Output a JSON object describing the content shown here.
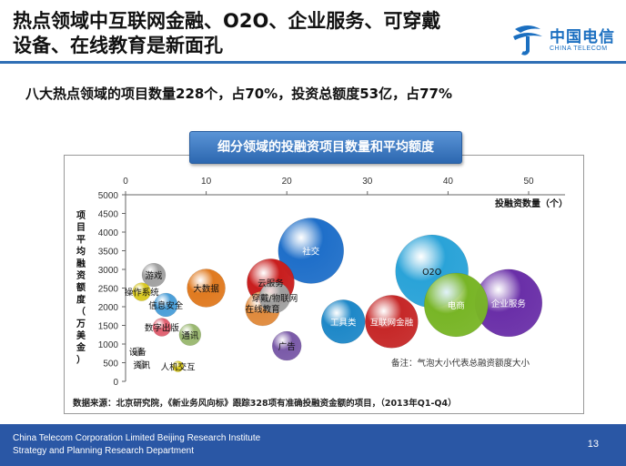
{
  "slide": {
    "title_line1": "热点领域中互联网金融、O2O、企业服务、可穿戴",
    "title_line2": "设备、在线教育是新面孔",
    "subtitle": "八大热点领域的项目数量228个，占70%，投资总额度53亿，占77%",
    "logo_cn": "中国电信",
    "logo_en": "CHINA TELECOM",
    "footer_line1": "China Telecom Corporation Limited Beijing Research Institute",
    "footer_line2": "Strategy and Planning Research Department",
    "page_number": "13",
    "accent_color": "#2a57a5"
  },
  "chart_data": {
    "type": "bubble",
    "title": "细分领域的投融资项目数量和平均额度",
    "xlabel": "投融资数量（个）",
    "ylabel": [
      "项",
      "目",
      "平",
      "均",
      "融",
      "资",
      "额",
      "度",
      "（",
      "万",
      "美",
      "金",
      "）"
    ],
    "xlim": [
      0,
      50
    ],
    "ylim": [
      0,
      5000
    ],
    "xticks": [
      0,
      10,
      20,
      30,
      40,
      50
    ],
    "yticks": [
      0,
      500,
      1000,
      1500,
      2000,
      2500,
      3000,
      3500,
      4000,
      4500,
      5000
    ],
    "note": "备注：气泡大小代表总融资额度大小",
    "source": "数据来源：北京研究院，《新业务风向标》跟踪328项有准确投融资金额的项目，（2013年Q1-Q4）",
    "grid": false,
    "points": [
      {
        "label": "社交",
        "x": 23,
        "y": 3500,
        "size": 36,
        "color": "#1f6fc9"
      },
      {
        "label": "O2O",
        "x": 38,
        "y": 2950,
        "size": 40,
        "color": "#2aa3d8"
      },
      {
        "label": "企业服务",
        "x": 47.5,
        "y": 2100,
        "size": 37,
        "color": "#6a2fa8"
      },
      {
        "label": "电商",
        "x": 41,
        "y": 2050,
        "size": 35,
        "color": "#78b526"
      },
      {
        "label": "互联网金融",
        "x": 33,
        "y": 1600,
        "size": 29,
        "color": "#c62828"
      },
      {
        "label": "工具类",
        "x": 27,
        "y": 1600,
        "size": 24,
        "color": "#1e88c8"
      },
      {
        "label": "云服务",
        "x": 18,
        "y": 2650,
        "size": 26,
        "color": "#c81e1e"
      },
      {
        "label": "穿戴/物联网",
        "x": 18.5,
        "y": 2250,
        "size": 17,
        "color": "#a0a0a0"
      },
      {
        "label": "在线教育",
        "x": 17,
        "y": 1950,
        "size": 19,
        "color": "#e08a3c"
      },
      {
        "label": "大数据",
        "x": 10,
        "y": 2500,
        "size": 21,
        "color": "#e07a20"
      },
      {
        "label": "广告",
        "x": 20,
        "y": 950,
        "size": 16,
        "color": "#7a5aa8"
      },
      {
        "label": "游戏",
        "x": 3.5,
        "y": 2850,
        "size": 13,
        "color": "#a0a0a0"
      },
      {
        "label": "操作系统",
        "x": 2,
        "y": 2400,
        "size": 10,
        "color": "#d8c820"
      },
      {
        "label": "信息安全",
        "x": 5,
        "y": 2050,
        "size": 13,
        "color": "#4a9ed8"
      },
      {
        "label": "数字出版",
        "x": 4.5,
        "y": 1450,
        "size": 10,
        "color": "#e06070"
      },
      {
        "label": "通讯",
        "x": 8,
        "y": 1250,
        "size": 12,
        "color": "#9ab870"
      },
      {
        "label": "设备",
        "x": 1.5,
        "y": 800,
        "size": 5,
        "color": "#a0a0a0"
      },
      {
        "label": "资讯",
        "x": 2,
        "y": 450,
        "size": 5,
        "color": "#a0a0a0"
      },
      {
        "label": "人机交互",
        "x": 6.5,
        "y": 400,
        "size": 6,
        "color": "#d8c820"
      }
    ]
  }
}
